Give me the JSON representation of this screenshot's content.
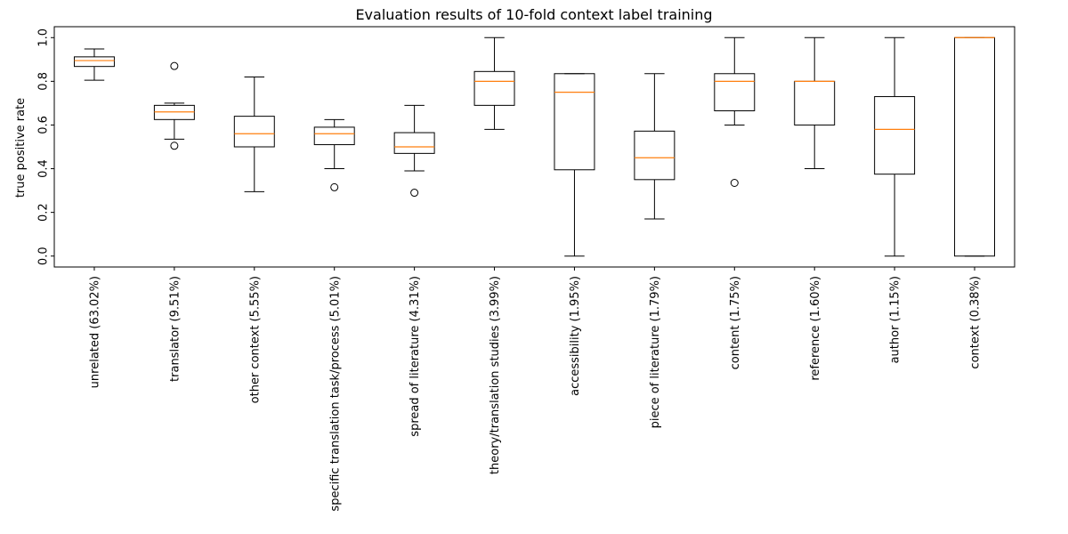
{
  "chart_data": {
    "type": "boxplot",
    "title": "Evaluation results of 10-fold context label training",
    "xlabel": "",
    "ylabel": "true positive rate",
    "ylim": [
      -0.05,
      1.05
    ],
    "yticks": [
      "0.0",
      "0.2",
      "0.4",
      "0.6",
      "0.8",
      "1.0"
    ],
    "ytick_values": [
      0.0,
      0.2,
      0.4,
      0.6,
      0.8,
      1.0
    ],
    "grid": false,
    "box_color": "#000000",
    "median_color": "#ff7f0e",
    "boxes": [
      {
        "label": "unrelated (63.02%)",
        "whisker_low": 0.805,
        "q1": 0.868,
        "median": 0.895,
        "q3": 0.912,
        "whisker_high": 0.948,
        "outliers": []
      },
      {
        "label": "translator (9.51%)",
        "whisker_low": 0.535,
        "q1": 0.625,
        "median": 0.66,
        "q3": 0.69,
        "whisker_high": 0.7,
        "outliers": [
          0.87,
          0.505
        ]
      },
      {
        "label": "other context (5.55%)",
        "whisker_low": 0.295,
        "q1": 0.5,
        "median": 0.56,
        "q3": 0.64,
        "whisker_high": 0.82,
        "outliers": []
      },
      {
        "label": "specific translation task/process (5.01%)",
        "whisker_low": 0.4,
        "q1": 0.51,
        "median": 0.56,
        "q3": 0.59,
        "whisker_high": 0.625,
        "outliers": [
          0.315
        ]
      },
      {
        "label": "spread of literature (4.31%)",
        "whisker_low": 0.39,
        "q1": 0.47,
        "median": 0.5,
        "q3": 0.565,
        "whisker_high": 0.69,
        "outliers": [
          0.29
        ]
      },
      {
        "label": "theory/translation studies (3.99%)",
        "whisker_low": 0.58,
        "q1": 0.69,
        "median": 0.8,
        "q3": 0.845,
        "whisker_high": 1.0,
        "outliers": []
      },
      {
        "label": "accessibility (1.95%)",
        "whisker_low": 0.0,
        "q1": 0.395,
        "median": 0.75,
        "q3": 0.835,
        "whisker_high": 0.835,
        "outliers": []
      },
      {
        "label": "piece of literature (1.79%)",
        "whisker_low": 0.17,
        "q1": 0.35,
        "median": 0.45,
        "q3": 0.572,
        "whisker_high": 0.835,
        "outliers": []
      },
      {
        "label": "content (1.75%)",
        "whisker_low": 0.6,
        "q1": 0.665,
        "median": 0.8,
        "q3": 0.835,
        "whisker_high": 1.0,
        "outliers": [
          0.335
        ]
      },
      {
        "label": "reference (1.60%)",
        "whisker_low": 0.4,
        "q1": 0.6,
        "median": 0.8,
        "q3": 0.8,
        "whisker_high": 1.0,
        "outliers": []
      },
      {
        "label": "author (1.15%)",
        "whisker_low": 0.0,
        "q1": 0.375,
        "median": 0.58,
        "q3": 0.73,
        "whisker_high": 1.0,
        "outliers": []
      },
      {
        "label": "context (0.38%)",
        "whisker_low": 0.0,
        "q1": 0.0,
        "median": 1.0,
        "q3": 1.0,
        "whisker_high": 1.0,
        "outliers": []
      }
    ]
  }
}
